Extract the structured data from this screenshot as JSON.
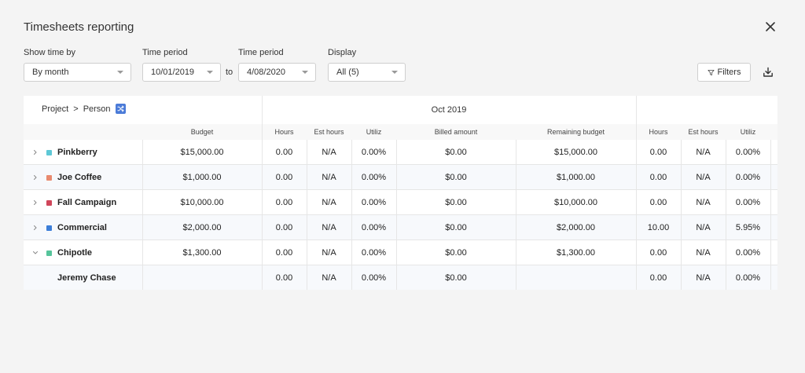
{
  "title": "Timesheets reporting",
  "controls": {
    "show_time_by": {
      "label": "Show time by",
      "value": "By month"
    },
    "time_period_start": {
      "label": "Time period",
      "value": "10/01/2019"
    },
    "to_text": "to",
    "time_period_end": {
      "label": "Time period",
      "value": "4/08/2020"
    },
    "display": {
      "label": "Display",
      "value": "All (5)"
    },
    "filters_label": "Filters"
  },
  "table": {
    "grouping": {
      "level1": "Project",
      "sep": ">",
      "level2": "Person"
    },
    "months": [
      "Oct 2019"
    ],
    "headers": {
      "budget": "Budget",
      "hours": "Hours",
      "est_hours": "Est hours",
      "utiliz": "Utiliz",
      "billed": "Billed amount",
      "remaining": "Remaining budget"
    },
    "rows": [
      {
        "name": "Pinkberry",
        "color": "#5ec8d6",
        "expand": "collapsed",
        "budget": "$15,000.00",
        "oct": {
          "hours": "0.00",
          "est": "N/A",
          "util": "0.00%",
          "billed": "$0.00",
          "remaining": "$15,000.00"
        },
        "nov": {
          "hours": "0.00",
          "est": "N/A",
          "util": "0.00%"
        }
      },
      {
        "name": "Joe Coffee",
        "color": "#e98a6f",
        "expand": "collapsed",
        "budget": "$1,000.00",
        "oct": {
          "hours": "0.00",
          "est": "N/A",
          "util": "0.00%",
          "billed": "$0.00",
          "remaining": "$1,000.00"
        },
        "nov": {
          "hours": "0.00",
          "est": "N/A",
          "util": "0.00%"
        }
      },
      {
        "name": "Fall Campaign",
        "color": "#d0465a",
        "expand": "collapsed",
        "budget": "$10,000.00",
        "oct": {
          "hours": "0.00",
          "est": "N/A",
          "util": "0.00%",
          "billed": "$0.00",
          "remaining": "$10,000.00"
        },
        "nov": {
          "hours": "0.00",
          "est": "N/A",
          "util": "0.00%"
        }
      },
      {
        "name": "Commercial",
        "color": "#3c7ed8",
        "expand": "collapsed",
        "budget": "$2,000.00",
        "oct": {
          "hours": "0.00",
          "est": "N/A",
          "util": "0.00%",
          "billed": "$0.00",
          "remaining": "$2,000.00"
        },
        "nov": {
          "hours": "10.00",
          "est": "N/A",
          "util": "5.95%"
        }
      },
      {
        "name": "Chipotle",
        "color": "#56c49b",
        "expand": "expanded",
        "budget": "$1,300.00",
        "oct": {
          "hours": "0.00",
          "est": "N/A",
          "util": "0.00%",
          "billed": "$0.00",
          "remaining": "$1,300.00"
        },
        "nov": {
          "hours": "0.00",
          "est": "N/A",
          "util": "0.00%"
        }
      },
      {
        "name": "Jeremy Chase",
        "color": "",
        "expand": "none",
        "budget": "",
        "oct": {
          "hours": "0.00",
          "est": "N/A",
          "util": "0.00%",
          "billed": "$0.00",
          "remaining": ""
        },
        "nov": {
          "hours": "0.00",
          "est": "N/A",
          "util": "0.00%"
        }
      }
    ]
  }
}
